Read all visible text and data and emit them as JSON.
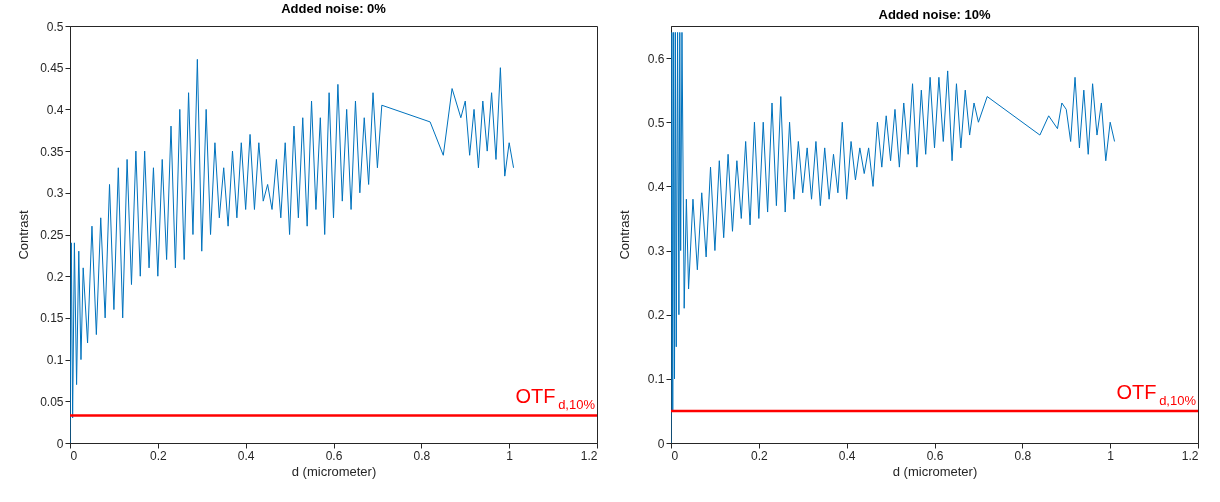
{
  "chart_data": [
    {
      "type": "line",
      "title": "Added noise: 0%",
      "xlabel": "d (micrometer)",
      "ylabel": "Contrast",
      "xlim": [
        0,
        1.2
      ],
      "xticks": [
        0,
        0.2,
        0.4,
        0.6,
        0.8,
        1,
        1.2
      ],
      "ylim": [
        0,
        0.5
      ],
      "yticks": [
        0,
        0.05,
        0.1,
        0.15,
        0.2,
        0.25,
        0.3,
        0.35,
        0.4,
        0.45,
        0.5
      ],
      "grid": false,
      "series": [
        {
          "color": "#0072bd",
          "x": [
            0,
            0.003,
            0.006,
            0.01,
            0.015,
            0.02,
            0.025,
            0.03,
            0.04,
            0.05,
            0.06,
            0.07,
            0.08,
            0.09,
            0.1,
            0.11,
            0.12,
            0.13,
            0.14,
            0.15,
            0.16,
            0.17,
            0.18,
            0.19,
            0.2,
            0.21,
            0.22,
            0.23,
            0.24,
            0.25,
            0.26,
            0.27,
            0.28,
            0.29,
            0.3,
            0.31,
            0.32,
            0.33,
            0.34,
            0.35,
            0.36,
            0.37,
            0.38,
            0.39,
            0.4,
            0.41,
            0.42,
            0.43,
            0.44,
            0.45,
            0.46,
            0.47,
            0.48,
            0.49,
            0.5,
            0.51,
            0.52,
            0.53,
            0.54,
            0.55,
            0.56,
            0.57,
            0.58,
            0.59,
            0.6,
            0.61,
            0.62,
            0.63,
            0.64,
            0.65,
            0.66,
            0.67,
            0.68,
            0.69,
            0.7,
            0.71,
            0.82,
            0.85,
            0.87,
            0.89,
            0.9,
            0.91,
            0.92,
            0.93,
            0.94,
            0.95,
            0.96,
            0.97,
            0.98,
            0.99,
            1.0,
            1.01
          ],
          "values": [
            0,
            0.24,
            0.03,
            0.24,
            0.07,
            0.23,
            0.1,
            0.21,
            0.12,
            0.26,
            0.13,
            0.27,
            0.15,
            0.31,
            0.16,
            0.33,
            0.15,
            0.34,
            0.19,
            0.35,
            0.2,
            0.35,
            0.21,
            0.33,
            0.2,
            0.34,
            0.22,
            0.38,
            0.21,
            0.4,
            0.22,
            0.42,
            0.25,
            0.46,
            0.23,
            0.4,
            0.25,
            0.36,
            0.27,
            0.33,
            0.26,
            0.35,
            0.27,
            0.36,
            0.28,
            0.37,
            0.28,
            0.36,
            0.29,
            0.31,
            0.28,
            0.34,
            0.27,
            0.36,
            0.25,
            0.38,
            0.27,
            0.39,
            0.26,
            0.41,
            0.28,
            0.39,
            0.25,
            0.42,
            0.27,
            0.43,
            0.29,
            0.4,
            0.28,
            0.41,
            0.3,
            0.39,
            0.31,
            0.42,
            0.33,
            0.405,
            0.385,
            0.345,
            0.425,
            0.39,
            0.41,
            0.345,
            0.4,
            0.33,
            0.41,
            0.35,
            0.42,
            0.34,
            0.45,
            0.32,
            0.36,
            0.33
          ]
        }
      ],
      "ref_lines": [
        {
          "axis": "y",
          "value": 0.033,
          "label": "OTF$_{d,10%}$",
          "color": "#ff0000"
        }
      ]
    },
    {
      "type": "line",
      "title": "Added noise: 10%",
      "xlabel": "d (micrometer)",
      "ylabel": "Contrast",
      "xlim": [
        0,
        1.2
      ],
      "xticks": [
        0,
        0.2,
        0.4,
        0.6,
        0.8,
        1,
        1.2
      ],
      "ylim": [
        0,
        0.65
      ],
      "yticks": [
        0,
        0.1,
        0.2,
        0.3,
        0.4,
        0.5,
        0.6
      ],
      "grid": false,
      "series": [
        {
          "color": "#0072bd",
          "x": [
            0,
            0.002,
            0.004,
            0.006,
            0.008,
            0.01,
            0.012,
            0.015,
            0.018,
            0.02,
            0.022,
            0.025,
            0.03,
            0.035,
            0.04,
            0.05,
            0.06,
            0.07,
            0.08,
            0.09,
            0.1,
            0.11,
            0.12,
            0.13,
            0.14,
            0.15,
            0.16,
            0.17,
            0.18,
            0.19,
            0.2,
            0.21,
            0.22,
            0.23,
            0.24,
            0.25,
            0.26,
            0.27,
            0.28,
            0.29,
            0.3,
            0.31,
            0.32,
            0.33,
            0.34,
            0.35,
            0.36,
            0.37,
            0.38,
            0.39,
            0.4,
            0.41,
            0.42,
            0.43,
            0.44,
            0.45,
            0.46,
            0.47,
            0.48,
            0.49,
            0.5,
            0.51,
            0.52,
            0.53,
            0.54,
            0.55,
            0.56,
            0.57,
            0.58,
            0.59,
            0.6,
            0.61,
            0.62,
            0.63,
            0.64,
            0.65,
            0.66,
            0.67,
            0.68,
            0.69,
            0.7,
            0.72,
            0.84,
            0.86,
            0.88,
            0.89,
            0.9,
            0.91,
            0.92,
            0.93,
            0.94,
            0.95,
            0.96,
            0.97,
            0.98,
            0.99,
            1.0,
            1.01
          ],
          "values": [
            0,
            0.64,
            0.05,
            0.64,
            0.1,
            0.64,
            0.15,
            0.64,
            0.2,
            0.64,
            0.3,
            0.64,
            0.21,
            0.38,
            0.24,
            0.38,
            0.27,
            0.39,
            0.29,
            0.43,
            0.3,
            0.44,
            0.32,
            0.45,
            0.33,
            0.44,
            0.35,
            0.47,
            0.34,
            0.5,
            0.35,
            0.5,
            0.36,
            0.53,
            0.37,
            0.54,
            0.36,
            0.5,
            0.38,
            0.47,
            0.39,
            0.46,
            0.38,
            0.47,
            0.37,
            0.46,
            0.38,
            0.45,
            0.39,
            0.5,
            0.38,
            0.47,
            0.41,
            0.46,
            0.42,
            0.46,
            0.4,
            0.5,
            0.43,
            0.51,
            0.44,
            0.52,
            0.43,
            0.53,
            0.45,
            0.56,
            0.43,
            0.55,
            0.45,
            0.57,
            0.46,
            0.57,
            0.47,
            0.58,
            0.44,
            0.56,
            0.46,
            0.55,
            0.48,
            0.53,
            0.5,
            0.54,
            0.48,
            0.51,
            0.49,
            0.53,
            0.52,
            0.47,
            0.57,
            0.46,
            0.55,
            0.45,
            0.56,
            0.48,
            0.53,
            0.44,
            0.5,
            0.47
          ]
        }
      ],
      "ref_lines": [
        {
          "axis": "y",
          "value": 0.05,
          "label": "OTF$_{d,10%}$",
          "color": "#ff0000"
        }
      ]
    }
  ]
}
